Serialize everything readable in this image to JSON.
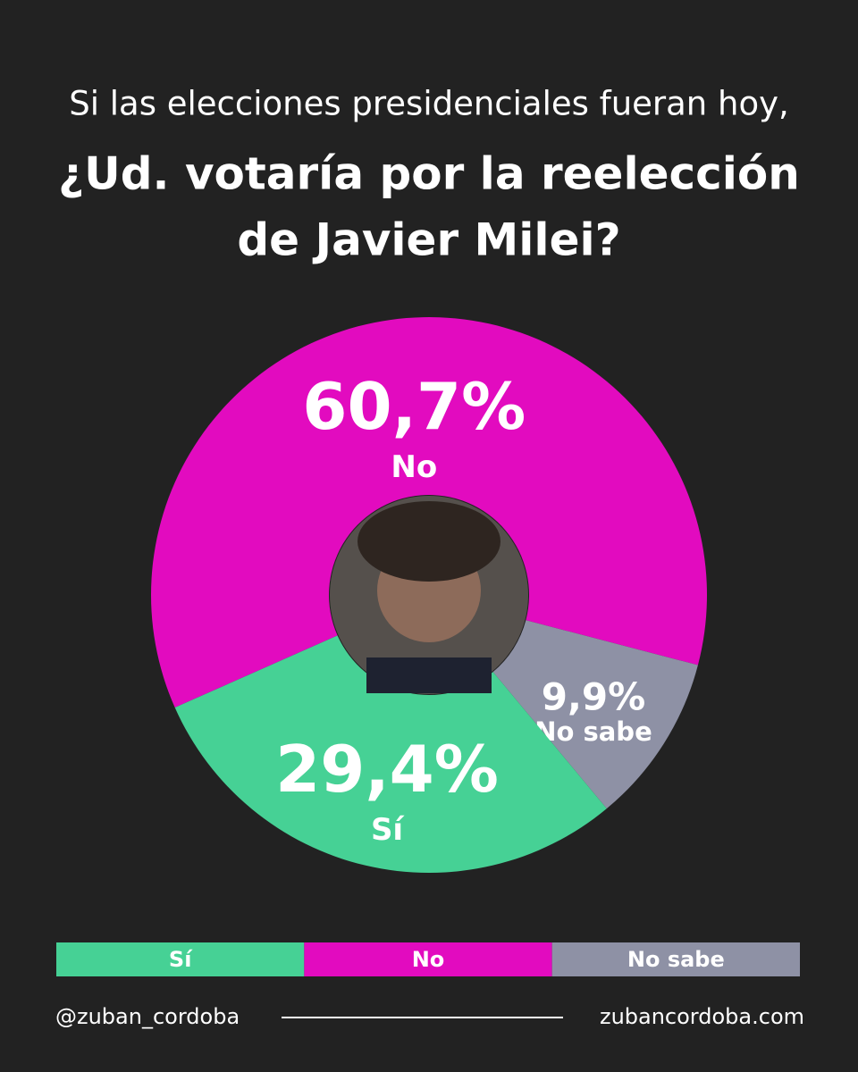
{
  "chart_data": {
    "type": "donut",
    "subtitle": "Si las elecciones presidenciales fueran hoy,",
    "title": [
      "¿Ud. votaría por la reelección",
      "de Javier Milei?"
    ],
    "categories": [
      "No",
      "No sabe",
      "Sí"
    ],
    "values": [
      60.7,
      9.9,
      29.4
    ],
    "value_labels": [
      "60,7%",
      "9,9%",
      "29,4%"
    ],
    "colors": [
      "#e20bbf",
      "#8e91a5",
      "#46d195"
    ],
    "legend_order": [
      2,
      0,
      1
    ]
  },
  "footer": {
    "handle": "@zuban_cordoba",
    "website": "zubancordoba.com"
  }
}
